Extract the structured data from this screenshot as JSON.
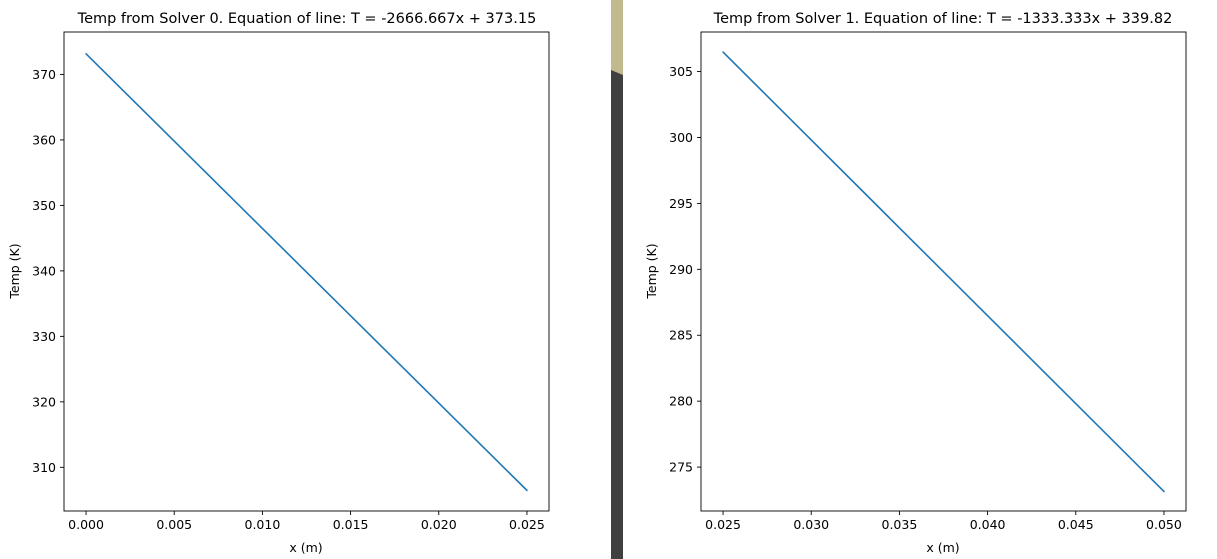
{
  "colors": {
    "series": "#1f77b4",
    "divider_dark": "#404040",
    "divider_tan": "#c2b98f"
  },
  "chart_data": [
    {
      "type": "line",
      "title": "Temp from Solver 0. Equation of line: T = -2666.667x + 373.15",
      "xlabel": "x (m)",
      "ylabel": "Temp (K)",
      "xlim": [
        -0.00125,
        0.02625
      ],
      "ylim": [
        303.33,
        376.48
      ],
      "xticks": [
        0.0,
        0.005,
        0.01,
        0.015,
        0.02,
        0.025
      ],
      "xtick_labels": [
        "0.000",
        "0.005",
        "0.010",
        "0.015",
        "0.020",
        "0.025"
      ],
      "yticks": [
        310,
        320,
        330,
        340,
        350,
        360,
        370
      ],
      "ytick_labels": [
        "310",
        "320",
        "330",
        "340",
        "350",
        "360",
        "370"
      ],
      "series": [
        {
          "name": "Solver 0",
          "x": [
            0.0,
            0.025
          ],
          "y": [
            373.15,
            306.48
          ]
        }
      ]
    },
    {
      "type": "line",
      "title": "Temp from Solver 1. Equation of line: T = -1333.333x + 339.82",
      "xlabel": "x (m)",
      "ylabel": "Temp (K)",
      "xlim": [
        0.02375,
        0.05125
      ],
      "ylim": [
        271.67,
        308.0
      ],
      "xticks": [
        0.025,
        0.03,
        0.035,
        0.04,
        0.045,
        0.05
      ],
      "xtick_labels": [
        "0.025",
        "0.030",
        "0.035",
        "0.040",
        "0.045",
        "0.050"
      ],
      "yticks": [
        275,
        280,
        285,
        290,
        295,
        300,
        305
      ],
      "ytick_labels": [
        "275",
        "280",
        "285",
        "290",
        "295",
        "300",
        "305"
      ],
      "series": [
        {
          "name": "Solver 1",
          "x": [
            0.025,
            0.05
          ],
          "y": [
            306.48,
            273.15
          ]
        }
      ]
    }
  ]
}
